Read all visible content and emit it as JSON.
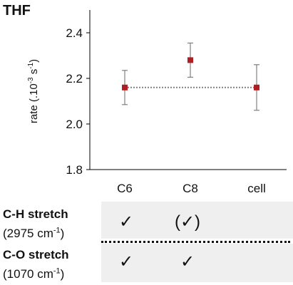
{
  "title": "THF",
  "chart_data": {
    "type": "scatter",
    "categories": [
      "C6",
      "C8",
      "cell"
    ],
    "values": [
      2.16,
      2.28,
      2.16
    ],
    "error_low": [
      2.085,
      2.205,
      2.06
    ],
    "error_high": [
      2.235,
      2.355,
      2.26
    ],
    "reference_line": 2.16,
    "ylabel_parts": [
      "rate (.10",
      "-3",
      " s",
      "-1",
      ")"
    ],
    "ylim": [
      1.8,
      2.5
    ],
    "yticks": [
      1.8,
      2.0,
      2.2,
      2.4
    ],
    "ytick_labels": [
      "1.8",
      "2.0",
      "2.2",
      "2.4"
    ],
    "marker_color": "#b01e23",
    "error_color": "#808080",
    "line_color": "#808080",
    "grid": false
  },
  "table": {
    "rows": [
      {
        "name": "C-H stretch",
        "wavenumber": "(2975 cm",
        "unit_exp": "-1",
        "close": ")",
        "marks": [
          "✓",
          "(✓)",
          ""
        ]
      },
      {
        "name": "C-O stretch",
        "wavenumber": "(1070 cm",
        "unit_exp": "-1",
        "close": ")",
        "marks": [
          "✓",
          "✓",
          ""
        ]
      }
    ]
  }
}
